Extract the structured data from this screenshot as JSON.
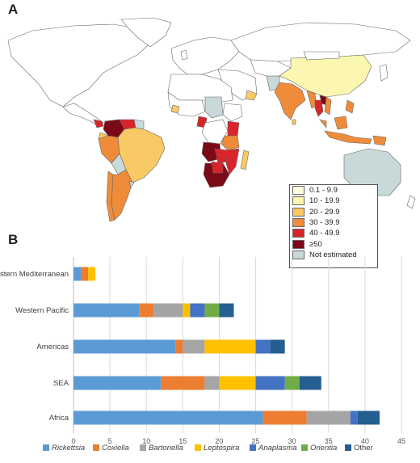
{
  "panel_a": {
    "label": "A",
    "legend": [
      {
        "label": "0.1 - 9.9",
        "color": "#fefde0"
      },
      {
        "label": "10 - 19.9",
        "color": "#fbf7b0"
      },
      {
        "label": "20 - 29.9",
        "color": "#f8c964"
      },
      {
        "label": "30 - 39.9",
        "color": "#ef8c3a"
      },
      {
        "label": "40 - 49.9",
        "color": "#d8242a"
      },
      {
        "label": "≥50",
        "color": "#7b0a16"
      },
      {
        "label": "Not estimated",
        "color": "#c9d9d9"
      }
    ]
  },
  "panel_b": {
    "label": "B"
  },
  "chart_data": {
    "type": "bar",
    "orientation": "horizontal",
    "stacked": true,
    "categories": [
      "Eastern Mediterranean",
      "Western Pacific",
      "Americas",
      "SEA",
      "Africa"
    ],
    "series": [
      {
        "name": "Rickettsia",
        "color": "#5b9bd5",
        "values": [
          1,
          9,
          14,
          12,
          26
        ]
      },
      {
        "name": "Coxiella",
        "color": "#ed7d31",
        "values": [
          1,
          2,
          1,
          6,
          6
        ]
      },
      {
        "name": "Bartonella",
        "color": "#a5a5a5",
        "values": [
          0,
          4,
          3,
          2,
          6
        ]
      },
      {
        "name": "Leptospira",
        "color": "#ffc000",
        "values": [
          1,
          1,
          7,
          5,
          0
        ]
      },
      {
        "name": "Anaplasma",
        "color": "#4472c4",
        "values": [
          0,
          2,
          2,
          4,
          1
        ]
      },
      {
        "name": "Orientia",
        "color": "#70ad47",
        "values": [
          0,
          2,
          0,
          2,
          0
        ]
      },
      {
        "name": "Other",
        "color": "#255e91",
        "values": [
          0,
          2,
          2,
          3,
          3
        ]
      }
    ],
    "xlim": [
      0,
      45
    ],
    "xticks": [
      "0",
      "5",
      "10",
      "15",
      "20",
      "25",
      "30",
      "35",
      "40",
      "45"
    ],
    "grid": true,
    "legend_position": "bottom"
  }
}
